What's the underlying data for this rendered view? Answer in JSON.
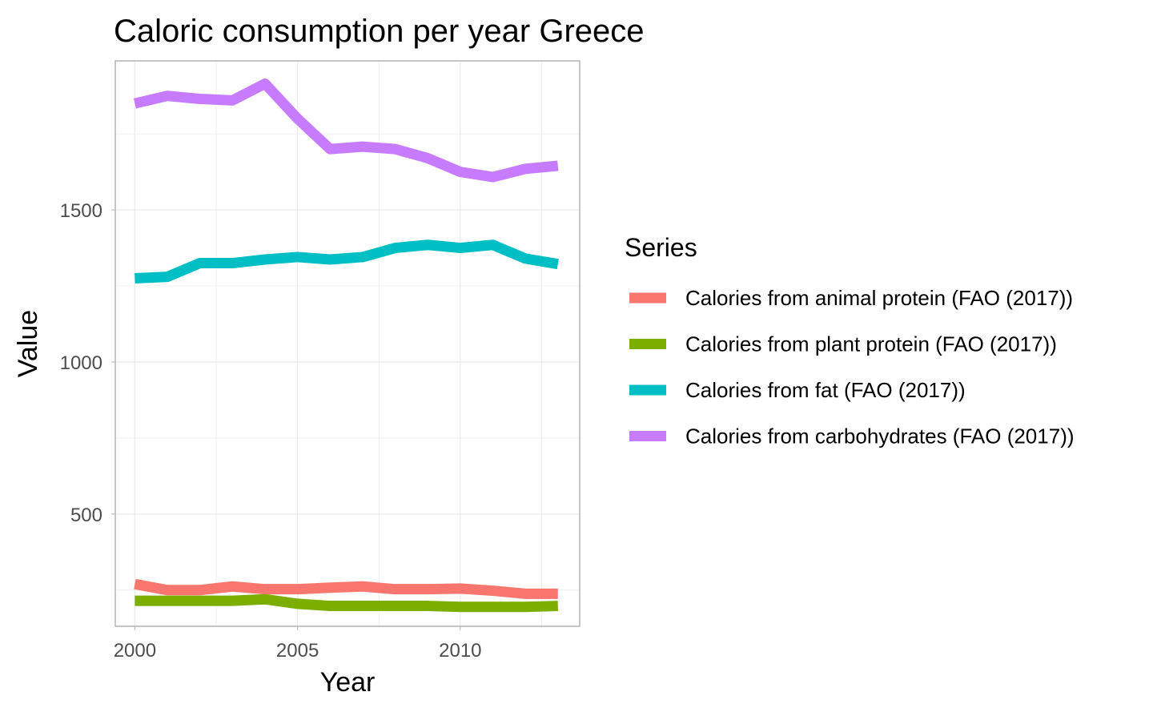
{
  "chart_data": {
    "type": "line",
    "title": "Caloric consumption per year Greece",
    "xlabel": "Year",
    "ylabel": "Value",
    "x": [
      2000,
      2001,
      2002,
      2003,
      2004,
      2005,
      2006,
      2007,
      2008,
      2009,
      2010,
      2011,
      2012,
      2013
    ],
    "xlim": [
      1999.4,
      2013.67
    ],
    "ylim": [
      131,
      1990
    ],
    "x_ticks": [
      2000,
      2005,
      2010
    ],
    "x_tick_labels": [
      "2000",
      "2005",
      "2010"
    ],
    "y_ticks": [
      500,
      1000,
      1500
    ],
    "y_tick_labels": [
      "500",
      "1000",
      "1500"
    ],
    "grid": true,
    "legend": {
      "title": "Series",
      "position": "right"
    },
    "series": [
      {
        "name": "Calories from animal protein (FAO (2017))",
        "color": "#F8766D",
        "values": [
          270,
          250,
          250,
          262,
          253,
          253,
          258,
          262,
          253,
          253,
          255,
          248,
          238,
          238
        ]
      },
      {
        "name": "Calories from plant protein (FAO (2017))",
        "color": "#7CAE00",
        "values": [
          215,
          215,
          215,
          215,
          220,
          205,
          198,
          198,
          198,
          198,
          195,
          195,
          195,
          198
        ]
      },
      {
        "name": "Calories from fat (FAO (2017))",
        "color": "#00BFC4",
        "values": [
          1275,
          1280,
          1325,
          1325,
          1337,
          1345,
          1337,
          1345,
          1375,
          1385,
          1375,
          1385,
          1340,
          1322
        ]
      },
      {
        "name": "Calories from carbohydrates (FAO (2017))",
        "color": "#C77CFF",
        "values": [
          1850,
          1875,
          1865,
          1860,
          1915,
          1800,
          1700,
          1708,
          1700,
          1670,
          1625,
          1608,
          1635,
          1645
        ]
      }
    ]
  }
}
